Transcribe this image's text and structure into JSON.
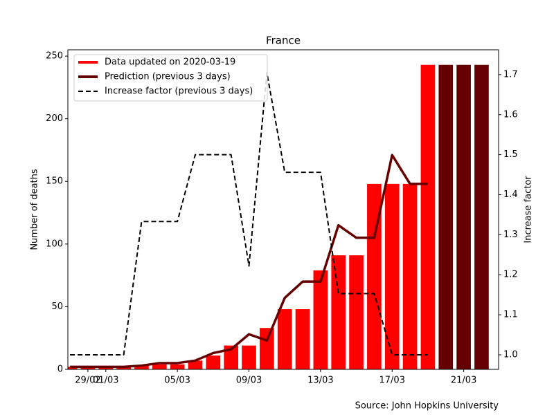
{
  "chart_data": {
    "type": "bar-line-combo",
    "title": "France",
    "categories": [
      null,
      "29/02",
      "01/03",
      null,
      null,
      null,
      "05/03",
      null,
      null,
      null,
      "09/03",
      null,
      null,
      null,
      "13/03",
      null,
      null,
      null,
      "17/03",
      null,
      null,
      null,
      "21/03",
      null
    ],
    "series": [
      {
        "name": "Data updated on 2020-03-19",
        "color": "#ff0000",
        "kind": "bar",
        "values": [
          2,
          2,
          2,
          2,
          3,
          4,
          4,
          7,
          11,
          19,
          19,
          33,
          48,
          48,
          79,
          91,
          91,
          148,
          148,
          148,
          243,
          null,
          null,
          null
        ]
      },
      {
        "name": "Prediction (previous 3 days)",
        "color": "#660000",
        "kind": "line",
        "values": [
          2,
          2,
          2,
          2,
          3,
          5,
          5,
          7,
          13,
          16,
          28,
          23,
          57,
          70,
          70,
          115,
          105,
          105,
          171,
          148,
          148,
          null,
          null,
          null
        ],
        "bar_values": [
          null,
          null,
          null,
          null,
          null,
          null,
          null,
          null,
          null,
          null,
          null,
          null,
          null,
          null,
          null,
          null,
          null,
          null,
          null,
          null,
          null,
          243,
          243,
          243
        ]
      },
      {
        "name": "Increase factor (previous 3 days)",
        "color": "#000000",
        "kind": "line",
        "dashed": true,
        "axis": "y2",
        "values": [
          1.0,
          1.0,
          1.0,
          1.0,
          1.333,
          1.333,
          1.333,
          1.5,
          1.5,
          1.5,
          1.222,
          1.705,
          1.456,
          1.456,
          1.456,
          1.153,
          1.153,
          1.153,
          1.0,
          1.0,
          1.0,
          null,
          null,
          null
        ]
      }
    ],
    "ylabel": "Number of deaths",
    "y2label": "Increase factor",
    "ylim": [
      0,
      255
    ],
    "yticks": [
      0,
      50,
      100,
      150,
      200,
      250
    ],
    "y2lim": [
      0.9637,
      1.762
    ],
    "y2ticks": [
      {
        "value": 1.0,
        "label": "1.0"
      },
      {
        "value": 1.1,
        "label": "1.1"
      },
      {
        "value": 1.2,
        "label": "1.2"
      },
      {
        "value": 1.3,
        "label": "1.3"
      },
      {
        "value": 1.4,
        "label": "1.4"
      },
      {
        "value": 1.5,
        "label": "1.5"
      },
      {
        "value": 1.6,
        "label": "1.6"
      },
      {
        "value": 1.7,
        "label": "1.7"
      }
    ],
    "legend": "upper left",
    "source": "Source: John Hopkins University"
  }
}
